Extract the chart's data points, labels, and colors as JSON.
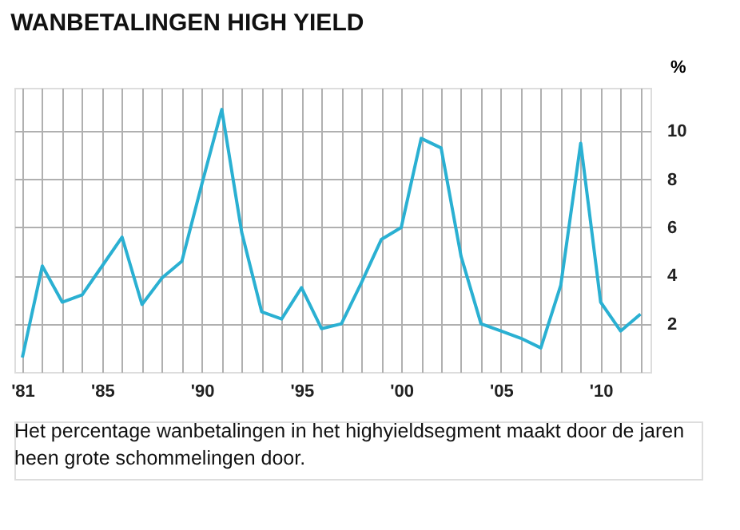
{
  "chart_data": {
    "type": "line",
    "title": "WANBETALINGEN HIGH YIELD",
    "ylabel": "%",
    "x": [
      1981,
      1982,
      1983,
      1984,
      1985,
      1986,
      1987,
      1988,
      1989,
      1990,
      1991,
      1992,
      1993,
      1994,
      1995,
      1996,
      1997,
      1998,
      1999,
      2000,
      2001,
      2002,
      2003,
      2004,
      2005,
      2006,
      2007,
      2008,
      2009,
      2010,
      2011,
      2012
    ],
    "series": [
      {
        "color": "#2ab0d2",
        "values": [
          0.6,
          4.4,
          2.9,
          3.2,
          4.4,
          5.6,
          2.8,
          3.9,
          4.6,
          7.8,
          10.9,
          5.8,
          2.5,
          2.2,
          3.5,
          1.8,
          2.0,
          3.7,
          5.5,
          6.0,
          9.7,
          9.3,
          4.8,
          2.0,
          1.7,
          1.4,
          1.0,
          3.6,
          9.5,
          2.9,
          1.7,
          2.4
        ]
      }
    ],
    "xlim": [
      1980.6,
      2012.5
    ],
    "ylim": [
      0,
      11.8
    ],
    "xticks": [
      {
        "value": 1981,
        "label": "'81"
      },
      {
        "value": 1982,
        "label": null
      },
      {
        "value": 1983,
        "label": null
      },
      {
        "value": 1984,
        "label": null
      },
      {
        "value": 1985,
        "label": "'85"
      },
      {
        "value": 1986,
        "label": null
      },
      {
        "value": 1987,
        "label": null
      },
      {
        "value": 1988,
        "label": null
      },
      {
        "value": 1989,
        "label": null
      },
      {
        "value": 1990,
        "label": "'90"
      },
      {
        "value": 1991,
        "label": null
      },
      {
        "value": 1992,
        "label": null
      },
      {
        "value": 1993,
        "label": null
      },
      {
        "value": 1994,
        "label": null
      },
      {
        "value": 1995,
        "label": "'95"
      },
      {
        "value": 1996,
        "label": null
      },
      {
        "value": 1997,
        "label": null
      },
      {
        "value": 1998,
        "label": null
      },
      {
        "value": 1999,
        "label": null
      },
      {
        "value": 2000,
        "label": "'00"
      },
      {
        "value": 2001,
        "label": null
      },
      {
        "value": 2002,
        "label": null
      },
      {
        "value": 2003,
        "label": null
      },
      {
        "value": 2004,
        "label": null
      },
      {
        "value": 2005,
        "label": "'05"
      },
      {
        "value": 2006,
        "label": null
      },
      {
        "value": 2007,
        "label": null
      },
      {
        "value": 2008,
        "label": null
      },
      {
        "value": 2009,
        "label": null
      },
      {
        "value": 2010,
        "label": "'10"
      },
      {
        "value": 2011,
        "label": null
      },
      {
        "value": 2012,
        "label": null
      }
    ],
    "yticks": [
      2,
      4,
      6,
      8,
      10
    ],
    "grid": true,
    "marker": "none",
    "line_style": "solid",
    "annotations": [
      "Het percentage wanbetalingen in het highyieldsegment maakt door de jaren heen grote schommelingen door."
    ]
  }
}
